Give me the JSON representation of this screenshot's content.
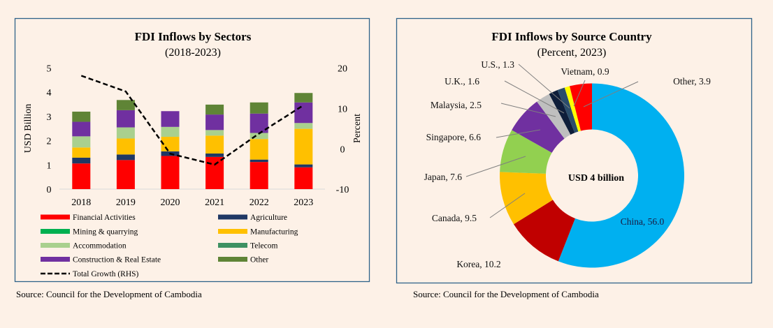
{
  "page": {
    "background": "#fdf1e7",
    "frame_color": "#2e6289"
  },
  "chart_data": [
    {
      "type": "bar",
      "stacked": true,
      "title": "FDI Inflows by Sectors",
      "subtitle": "(2018-2023)",
      "xlabel": "",
      "ylabel": "USD Billion",
      "y2label": "Percent",
      "ylim": [
        0,
        5
      ],
      "yticks": [
        "0",
        "1",
        "2",
        "3",
        "4",
        "5"
      ],
      "y2lim": [
        -10,
        20
      ],
      "y2ticks": [
        "-10",
        "0",
        "10",
        "20"
      ],
      "grid": false,
      "categories": [
        "2018",
        "2019",
        "2020",
        "2021",
        "2022",
        "2023"
      ],
      "series": [
        {
          "name": "Financial Activities",
          "color": "#ff0000",
          "values": [
            1.06,
            1.2,
            1.37,
            1.33,
            1.12,
            0.9
          ]
        },
        {
          "name": "Agriculture",
          "color": "#1f3864",
          "values": [
            0.24,
            0.23,
            0.19,
            0.14,
            0.1,
            0.12
          ]
        },
        {
          "name": "Mining & quarrying",
          "color": "#00b050",
          "values": [
            0,
            0,
            0,
            0,
            0,
            0
          ]
        },
        {
          "name": "Manufacturing",
          "color": "#ffc000",
          "values": [
            0.42,
            0.66,
            0.6,
            0.74,
            0.85,
            1.47
          ]
        },
        {
          "name": "Accommodation",
          "color": "#a9d08e",
          "values": [
            0.46,
            0.46,
            0.41,
            0.23,
            0.25,
            0.24
          ]
        },
        {
          "name": "Telecom",
          "color": "#3e9163",
          "values": [
            0,
            0,
            0,
            0,
            0,
            0
          ]
        },
        {
          "name": "Construction & Real Estate",
          "color": "#7030a0",
          "values": [
            0.6,
            0.71,
            0.65,
            0.64,
            0.8,
            0.85
          ]
        },
        {
          "name": "Other",
          "color": "#5f8436",
          "values": [
            0.42,
            0.42,
            0.0,
            0.41,
            0.46,
            0.39
          ]
        }
      ],
      "line_series": {
        "name": "Total Growth (RHS)",
        "axis": "right",
        "style": "dashed",
        "color": "#000000",
        "values": [
          18.1,
          14.2,
          -1.2,
          -3.9,
          3.8,
          10.8
        ]
      },
      "legend": {
        "placement": "bottom",
        "left_column": [
          "Financial Activities",
          "Mining & quarrying",
          "Accommodation",
          "Construction & Real Estate",
          "Total Growth (RHS)"
        ],
        "right_column": [
          "Agriculture",
          "Manufacturing",
          "Telecom",
          "Other"
        ]
      },
      "source": "Source: Council for the Development of Cambodia"
    },
    {
      "type": "pie",
      "donut": true,
      "title": "FDI Inflows by Source Country",
      "subtitle": "(Percent, 2023)",
      "center_label": "USD 4 billion",
      "slices": [
        {
          "label": "China",
          "value": 56.0,
          "color": "#00b0f0",
          "display": "China,  56.0"
        },
        {
          "label": "Korea",
          "value": 10.2,
          "color": "#c00000",
          "display": "Korea,  10.2"
        },
        {
          "label": "Canada",
          "value": 9.5,
          "color": "#ffc000",
          "display": "Canada,  9.5"
        },
        {
          "label": "Japan",
          "value": 7.6,
          "color": "#92d050",
          "display": "Japan,  7.6"
        },
        {
          "label": "Singapore",
          "value": 6.6,
          "color": "#7030a0",
          "display": "Singapore,  6.6"
        },
        {
          "label": "Malaysia",
          "value": 2.5,
          "color": "#bfbfbf",
          "display": "Malaysia,  2.5"
        },
        {
          "label": "U.K.",
          "value": 1.6,
          "color": "#0e1e3a",
          "display": "U.K.,  1.6"
        },
        {
          "label": "U.S.",
          "value": 1.3,
          "color": "#2a4d6b",
          "display": "U.S.,  1.3"
        },
        {
          "label": "Vietnam",
          "value": 0.9,
          "color": "#ffff00",
          "display": "Vietnam,  0.9"
        },
        {
          "label": "Other",
          "value": 3.9,
          "color": "#ff0000",
          "display": "Other,  3.9"
        }
      ],
      "source": "Source: Council for the Development of Cambodia"
    }
  ]
}
